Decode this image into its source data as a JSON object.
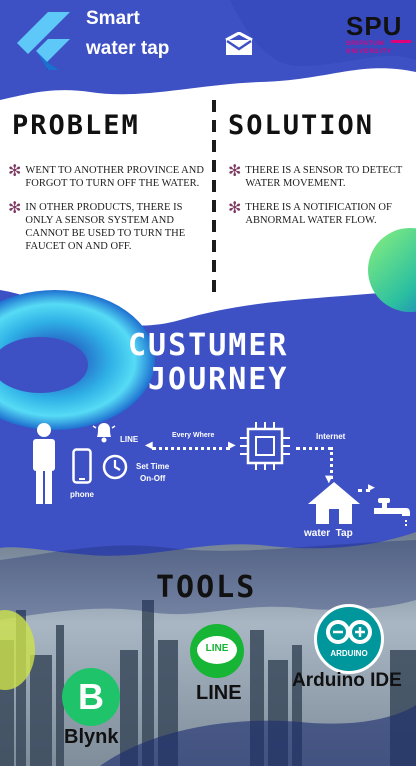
{
  "header": {
    "title_line1": "Smart",
    "title_line2": "water tap",
    "university_logo": "SPU",
    "university_name_line1": "SRIPATUM",
    "university_name_line2": "UNIVERSITY"
  },
  "problem": {
    "heading": "PROBLEM",
    "items": [
      "WENT TO ANOTHER PROVINCE AND FORGOT TO TURN OFF THE WATER.",
      "IN OTHER PRODUCTS, THERE IS ONLY A SENSOR SYSTEM AND CANNOT BE USED TO TURN THE FAUCET ON AND OFF."
    ]
  },
  "solution": {
    "heading": "SOLUTION",
    "items": [
      "THERE IS A SENSOR TO DETECT WATER MOVEMENT.",
      "THERE IS A NOTIFICATION OF ABNORMAL WATER FLOW."
    ]
  },
  "journey": {
    "heading_line1": "CUSTUMER",
    "heading_line2": "JOURNEY",
    "line_label": "LINE",
    "every_where_label": "Every Where",
    "internet_label": "Internet",
    "set_time_line1": "Set Time",
    "set_time_line2": "On-Off",
    "phone_label": "phone",
    "water_tap_label": "water  Tap"
  },
  "tools": {
    "heading": "TOOLS",
    "line_logo_text": "LINE",
    "line_label": "LINE",
    "arduino_logo_text": "ARDUINO",
    "arduino_label": "Arduino IDE",
    "blynk_logo_text": "B",
    "blynk_label": "Blynk"
  },
  "colors": {
    "primary_blue": "#3e51c4",
    "dark_navy": "#1a2b6e",
    "line_green": "#16b535",
    "blynk_green": "#1fc36a",
    "arduino_teal": "#00979c",
    "spu_pink": "#e0007a",
    "torus_cyan": "#39c6e6"
  },
  "icons": [
    "flutter-logo-icon",
    "mail-icon",
    "person-icon",
    "phone-icon",
    "bell-icon",
    "clock-icon",
    "chip-icon",
    "house-icon",
    "faucet-icon",
    "arrow-icon"
  ]
}
